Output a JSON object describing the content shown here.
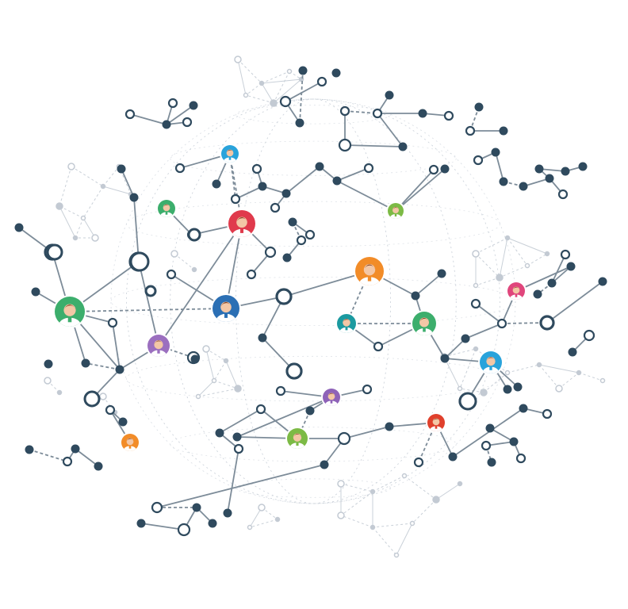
{
  "illustration": {
    "colors": {
      "background": "#ffffff",
      "primary_line": "#7d8c99",
      "dark_node": "#2f4a5e",
      "light_line": "#c9d0d8",
      "light_node": "#c3cad3",
      "skin": "#f3c7a6",
      "hair": "#8a4a2b"
    },
    "avatars": [
      {
        "name": "avatar-top-blue",
        "ring": "#29a3db"
      },
      {
        "name": "avatar-top-red",
        "ring": "#e03a4c"
      },
      {
        "name": "avatar-left-green-small",
        "ring": "#3cae6c"
      },
      {
        "name": "avatar-center-orange",
        "ring": "#f28c28"
      },
      {
        "name": "avatar-right-olive",
        "ring": "#7cba45"
      },
      {
        "name": "avatar-left-big-green",
        "ring": "#3cae6c"
      },
      {
        "name": "avatar-center-blue",
        "ring": "#2b6fb4"
      },
      {
        "name": "avatar-purple",
        "ring": "#9b6fbf"
      },
      {
        "name": "avatar-teal",
        "ring": "#1b9aa0"
      },
      {
        "name": "avatar-green-right",
        "ring": "#3cae6c"
      },
      {
        "name": "avatar-pink",
        "ring": "#e0467c"
      },
      {
        "name": "avatar-sky",
        "ring": "#29a3db"
      },
      {
        "name": "avatar-bottom-purple",
        "ring": "#8e62b8"
      },
      {
        "name": "avatar-bottom-lime",
        "ring": "#7cba45"
      },
      {
        "name": "avatar-bottom-red",
        "ring": "#e0402c"
      },
      {
        "name": "avatar-bottom-orange",
        "ring": "#f28c28"
      }
    ]
  }
}
